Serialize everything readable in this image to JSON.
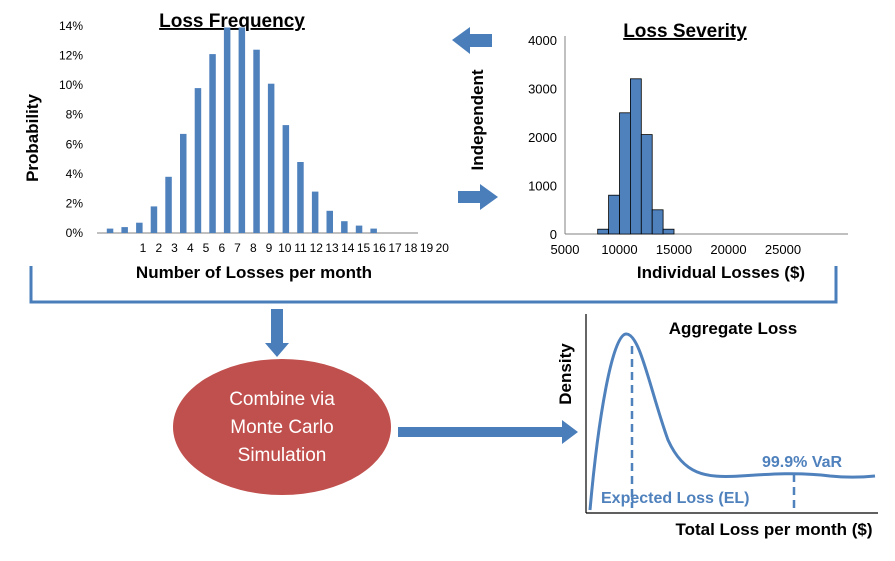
{
  "colors": {
    "bar": "#4f81bd",
    "arrow": "#4a7ebb",
    "axis": "#808080",
    "ellipse": "#c0504d",
    "accent_text": "#4f81bd"
  },
  "frequency": {
    "title": "Loss Frequency",
    "ylabel": "Probability",
    "xlabel": "Number of Losses per month",
    "y_ticks": [
      "0%",
      "2%",
      "4%",
      "6%",
      "8%",
      "10%",
      "12%",
      "14%"
    ],
    "x_ticks": [
      "1",
      "2",
      "3",
      "4",
      "5",
      "6",
      "7",
      "8",
      "9",
      "10",
      "11",
      "12",
      "13",
      "14",
      "15",
      "16",
      "17",
      "18",
      "19",
      "20"
    ]
  },
  "severity": {
    "title": "Loss Severity",
    "xlabel": "Individual Losses ($)",
    "y_ticks": [
      "0",
      "1000",
      "2000",
      "3000",
      "4000"
    ],
    "x_ticks": [
      "5000",
      "10000",
      "15000",
      "20000",
      "25000"
    ]
  },
  "independent_label": "Independent",
  "monte_carlo": {
    "line1": "Combine via",
    "line2": "Monte Carlo",
    "line3": "Simulation"
  },
  "aggregate": {
    "title": "Aggregate Loss",
    "ylabel": "Density",
    "xlabel": "Total Loss per month ($)",
    "el_label": "Expected Loss (EL)",
    "var_label": "99.9% VaR"
  },
  "chart_data": [
    {
      "type": "bar",
      "title": "Loss Frequency",
      "xlabel": "Number of Losses per month",
      "ylabel": "Probability",
      "ylim": [
        0,
        0.14
      ],
      "values": [
        0.003,
        0.004,
        0.007,
        0.018,
        0.038,
        0.067,
        0.098,
        0.121,
        0.139,
        0.139,
        0.124,
        0.101,
        0.073,
        0.048,
        0.028,
        0.015,
        0.008,
        0.005,
        0.003
      ]
    },
    {
      "type": "bar",
      "title": "Loss Severity",
      "xlabel": "Individual Losses ($)",
      "ylim": [
        0,
        4000
      ],
      "bin_width": 1000,
      "bins": [
        {
          "x": 8000,
          "value": 100
        },
        {
          "x": 9000,
          "value": 800
        },
        {
          "x": 10000,
          "value": 2500
        },
        {
          "x": 11000,
          "value": 3200
        },
        {
          "x": 12000,
          "value": 2050
        },
        {
          "x": 13000,
          "value": 500
        },
        {
          "x": 14000,
          "value": 100
        }
      ]
    }
  ]
}
